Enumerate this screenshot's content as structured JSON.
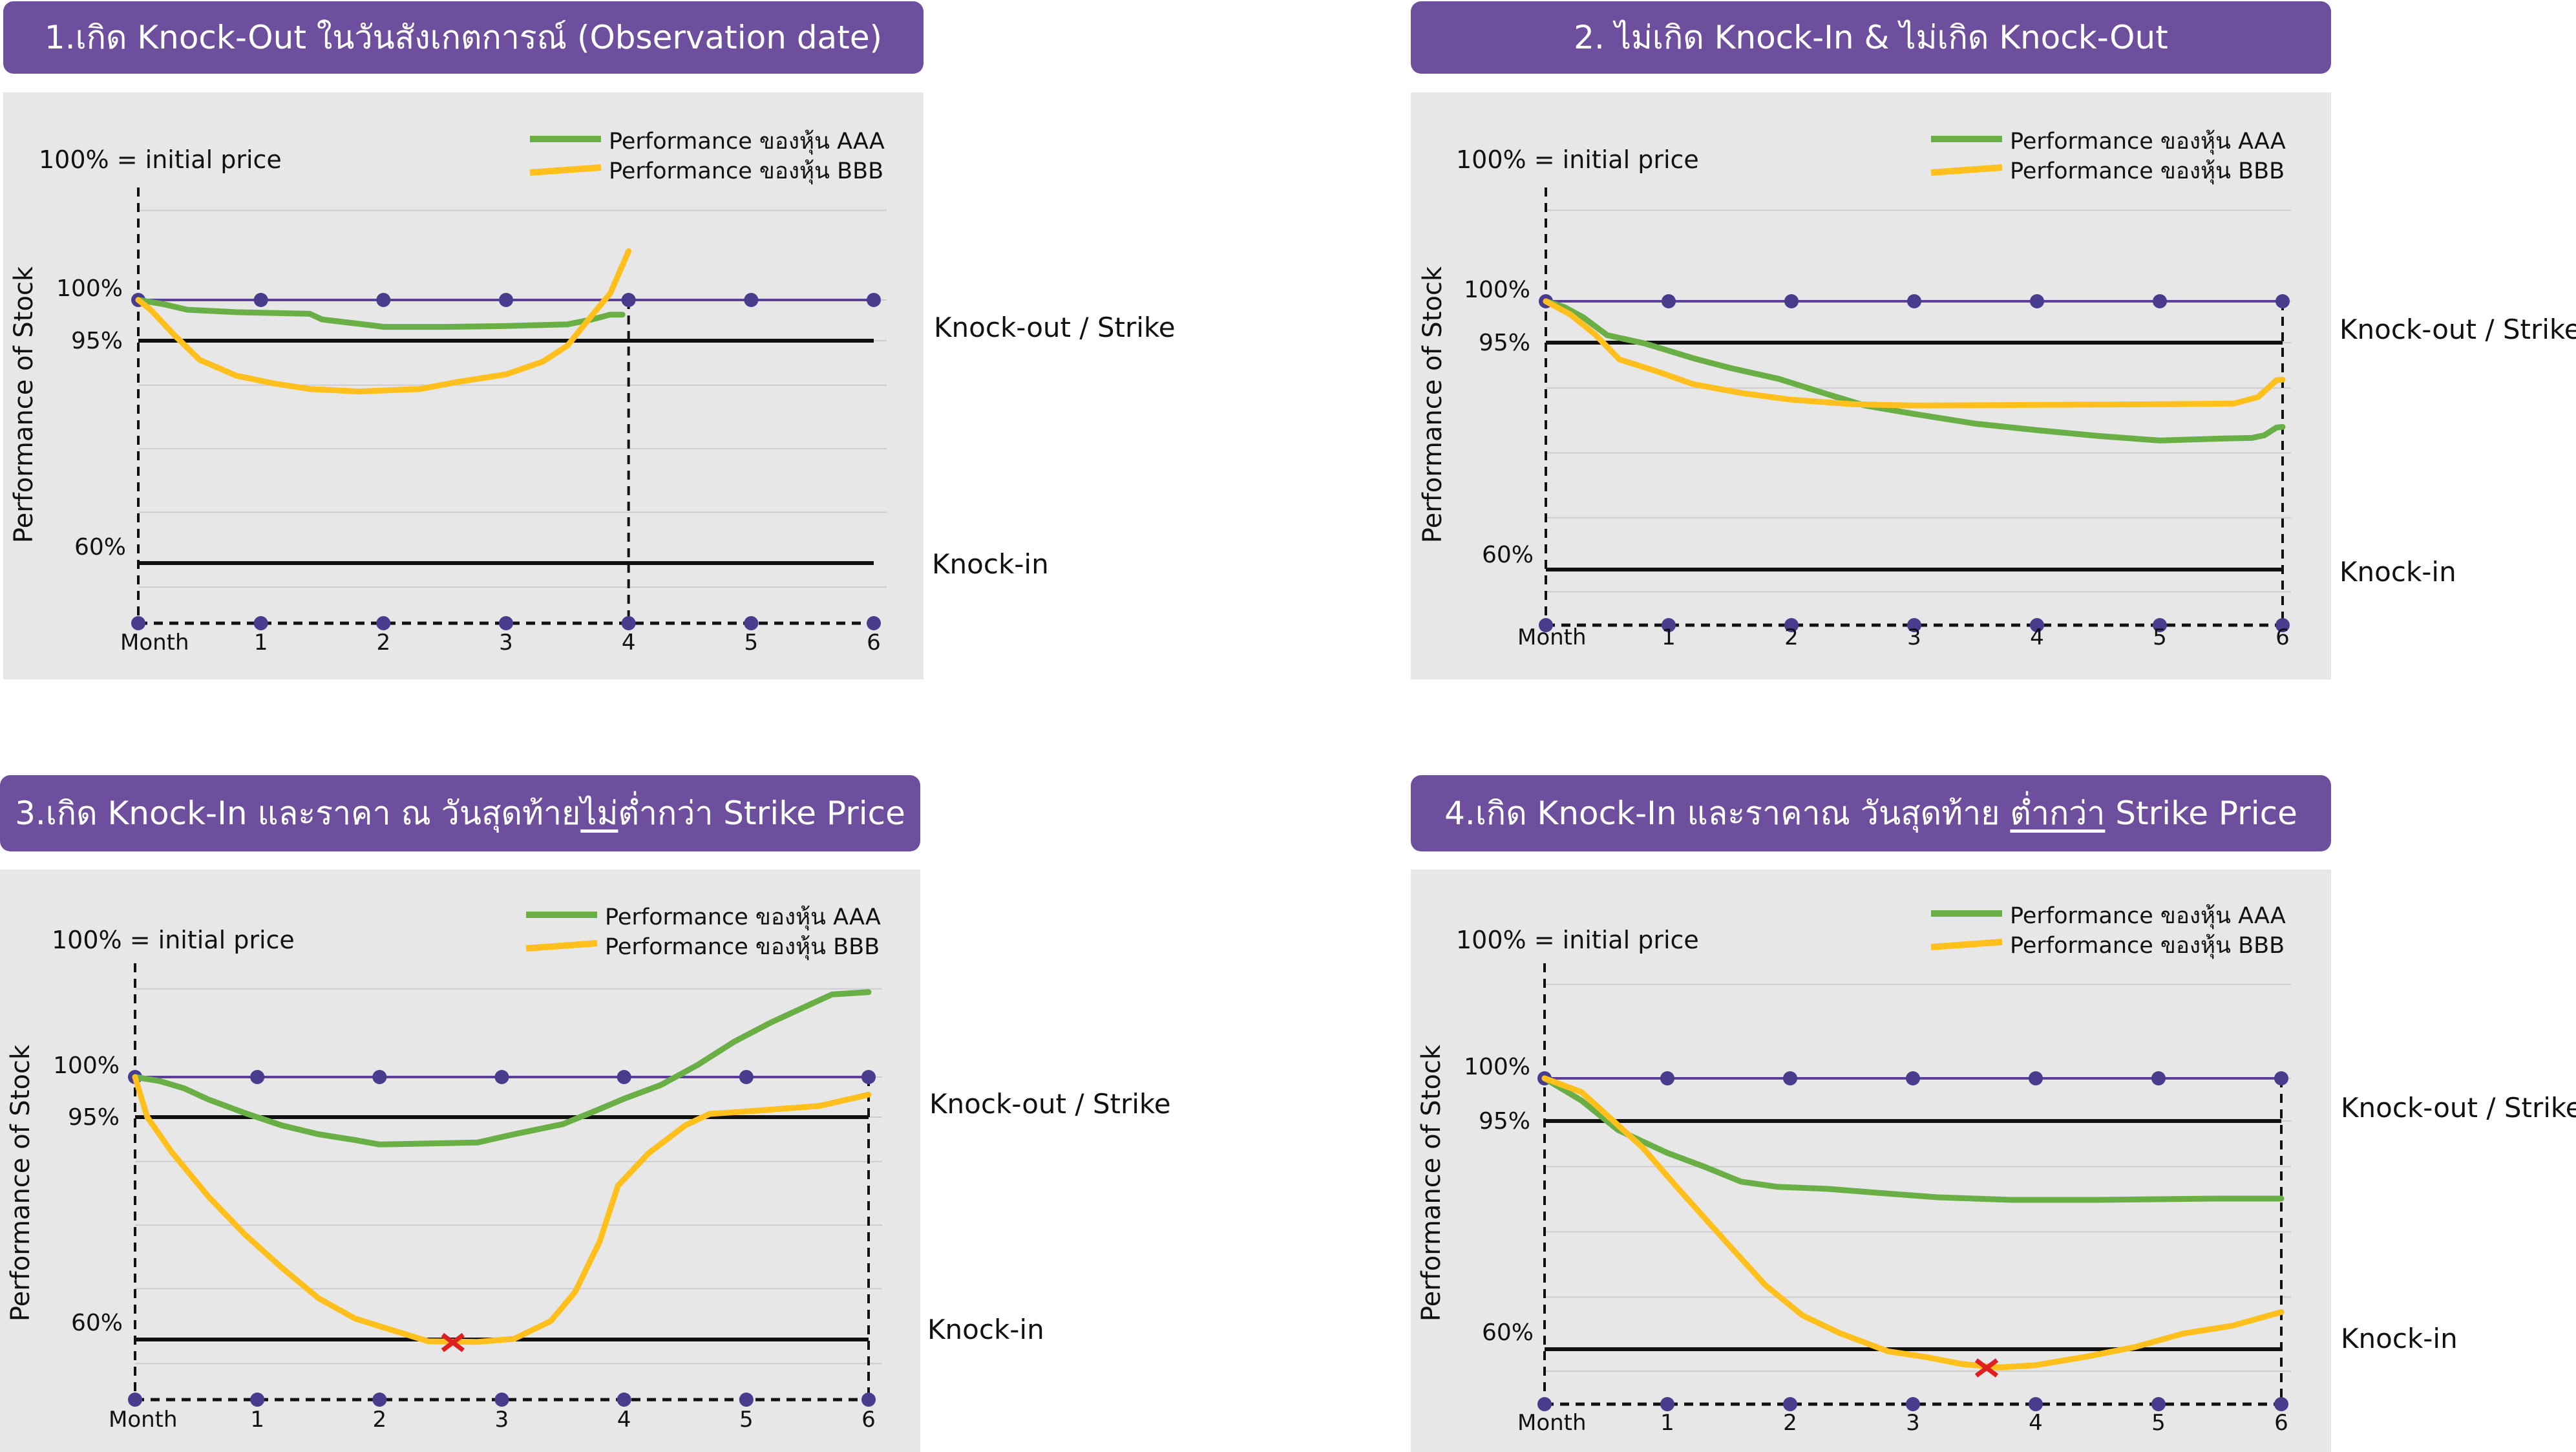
{
  "colors": {
    "banner_bg": "#6d4f9e",
    "plot_bg": "#e7e7e8",
    "aaa": "#6aaf45",
    "bbb": "#ffc01e",
    "strike_line": "#5b3f98",
    "observation_dot": "#4a3c8c",
    "knock_in_marker": "#e02020"
  },
  "chart_data": [
    {
      "type": "line",
      "title": "1.เกิด Knock-Out ในวันสังเกตการณ์ (Observation date)",
      "ylabel": "Performance of Stock",
      "note": "100% = initial price",
      "xlabel": "Month",
      "x_ticks": [
        "1",
        "2",
        "3",
        "4",
        "5",
        "6"
      ],
      "y_ticks": [
        {
          "label": "100%",
          "value": 100
        },
        {
          "label": "95%",
          "value": 95
        },
        {
          "label": "60%",
          "value": 60
        }
      ],
      "xlim": [
        0,
        6
      ],
      "ylim": [
        50,
        116
      ],
      "knock_out_label": "Knock-out / Strike",
      "knock_in_label": "Knock-in",
      "strike_level": 95,
      "knock_in_level": 60,
      "initial_level": 100,
      "end_month": 4,
      "series": [
        {
          "name": "Performance ของหุ้น AAA",
          "color": "aaa",
          "points": [
            [
              0,
              100
            ],
            [
              0.2,
              99.5
            ],
            [
              0.4,
              98.8
            ],
            [
              0.8,
              98.5
            ],
            [
              1.4,
              98.3
            ],
            [
              1.5,
              97.6
            ],
            [
              1.9,
              96.9
            ],
            [
              2.0,
              96.7
            ],
            [
              2.5,
              96.7
            ],
            [
              3.0,
              96.8
            ],
            [
              3.5,
              97.0
            ],
            [
              3.7,
              97.6
            ],
            [
              3.85,
              98.2
            ],
            [
              3.95,
              98.2
            ]
          ]
        },
        {
          "name": "Performance ของหุ้น BBB",
          "color": "bbb",
          "points": [
            [
              0,
              100
            ],
            [
              0.1,
              98.8
            ],
            [
              0.3,
              95.6
            ],
            [
              0.5,
              92.0
            ],
            [
              0.8,
              89.5
            ],
            [
              1.1,
              88.3
            ],
            [
              1.4,
              87.4
            ],
            [
              1.8,
              87.0
            ],
            [
              2.3,
              87.4
            ],
            [
              2.6,
              88.5
            ],
            [
              3.0,
              89.7
            ],
            [
              3.3,
              91.7
            ],
            [
              3.5,
              94.2
            ],
            [
              3.7,
              98.1
            ],
            [
              3.85,
              100.8
            ],
            [
              4.0,
              106.0
            ]
          ]
        }
      ],
      "ko_marker": null
    },
    {
      "type": "line",
      "title": "2. ไม่เกิด Knock-In & ไม่เกิด Knock-Out",
      "ylabel": "Performance of Stock",
      "note": "100% = initial price",
      "xlabel": "Month",
      "x_ticks": [
        "1",
        "2",
        "3",
        "4",
        "5",
        "6"
      ],
      "y_ticks": [
        {
          "label": "100%",
          "value": 100
        },
        {
          "label": "95%",
          "value": 95
        },
        {
          "label": "60%",
          "value": 60
        }
      ],
      "xlim": [
        0,
        6
      ],
      "ylim": [
        50,
        116
      ],
      "knock_out_label": "Knock-out / Strike",
      "knock_in_label": "Knock-in",
      "strike_level": 95,
      "knock_in_level": 60,
      "initial_level": 100,
      "end_month": 6,
      "series": [
        {
          "name": "Performance ของหุ้น AAA",
          "color": "aaa",
          "points": [
            [
              0,
              100
            ],
            [
              0.15,
              99.3
            ],
            [
              0.3,
              98.1
            ],
            [
              0.5,
              95.9
            ],
            [
              0.8,
              94.9
            ],
            [
              1.2,
              92.6
            ],
            [
              1.5,
              91.1
            ],
            [
              1.9,
              89.4
            ],
            [
              2.3,
              87.0
            ],
            [
              2.6,
              85.3
            ],
            [
              3.0,
              84.0
            ],
            [
              3.5,
              82.5
            ],
            [
              4.0,
              81.5
            ],
            [
              4.5,
              80.6
            ],
            [
              5.0,
              79.9
            ],
            [
              5.5,
              80.2
            ],
            [
              5.75,
              80.3
            ],
            [
              5.85,
              80.7
            ],
            [
              5.95,
              81.9
            ],
            [
              6.0,
              82.0
            ]
          ]
        },
        {
          "name": "Performance ของหุ้น BBB",
          "color": "bbb",
          "points": [
            [
              0,
              100
            ],
            [
              0.2,
              98.4
            ],
            [
              0.4,
              96.0
            ],
            [
              0.6,
              92.4
            ],
            [
              0.9,
              90.6
            ],
            [
              1.2,
              88.6
            ],
            [
              1.6,
              87.2
            ],
            [
              2.0,
              86.2
            ],
            [
              2.5,
              85.5
            ],
            [
              3.0,
              85.3
            ],
            [
              4.0,
              85.4
            ],
            [
              5.0,
              85.5
            ],
            [
              5.6,
              85.6
            ],
            [
              5.8,
              86.6
            ],
            [
              5.95,
              89.2
            ],
            [
              6.0,
              89.3
            ]
          ]
        }
      ],
      "ko_marker": null
    },
    {
      "type": "line",
      "title": "3.เกิด Knock-In และราคา ณ วันสุดท้าย",
      "title_underlined": "ไม่",
      "title_after": "ต่ำกว่า Strike Price",
      "ylabel": "Performance of Stock",
      "note": "100% = initial price",
      "xlabel": "Month",
      "x_ticks": [
        "1",
        "2",
        "3",
        "4",
        "5",
        "6"
      ],
      "y_ticks": [
        {
          "label": "100%",
          "value": 100
        },
        {
          "label": "95%",
          "value": 95
        },
        {
          "label": "60%",
          "value": 60
        }
      ],
      "xlim": [
        0,
        6
      ],
      "ylim": [
        50,
        116
      ],
      "knock_out_label": "Knock-out / Strike",
      "knock_in_label": "Knock-in",
      "strike_level": 95,
      "knock_in_level": 60,
      "initial_level": 100,
      "end_month": 6,
      "series": [
        {
          "name": "Performance ของหุ้น AAA",
          "color": "aaa",
          "points": [
            [
              0,
              100
            ],
            [
              0.2,
              99.5
            ],
            [
              0.4,
              98.6
            ],
            [
              0.6,
              97.2
            ],
            [
              0.9,
              95.5
            ],
            [
              1.2,
              93.7
            ],
            [
              1.5,
              92.3
            ],
            [
              1.8,
              91.4
            ],
            [
              2.0,
              90.7
            ],
            [
              2.8,
              91.0
            ],
            [
              3.1,
              92.3
            ],
            [
              3.5,
              93.9
            ],
            [
              3.8,
              96.0
            ],
            [
              4.0,
              97.3
            ],
            [
              4.3,
              99.0
            ],
            [
              4.6,
              101.5
            ],
            [
              4.9,
              104.4
            ],
            [
              5.2,
              106.8
            ],
            [
              5.5,
              108.9
            ],
            [
              5.7,
              110.3
            ],
            [
              6.0,
              110.6
            ]
          ]
        },
        {
          "name": "Performance ของหุ้น BBB",
          "color": "bbb",
          "points": [
            [
              0,
              100
            ],
            [
              0.1,
              95.0
            ],
            [
              0.3,
              89.5
            ],
            [
              0.6,
              82.5
            ],
            [
              0.9,
              76.5
            ],
            [
              1.2,
              71.3
            ],
            [
              1.5,
              66.5
            ],
            [
              1.8,
              63.3
            ],
            [
              2.1,
              61.5
            ],
            [
              2.4,
              59.7
            ],
            [
              2.8,
              59.6
            ],
            [
              3.1,
              60.1
            ],
            [
              3.4,
              62.9
            ],
            [
              3.6,
              67.5
            ],
            [
              3.8,
              75.4
            ],
            [
              3.95,
              84.2
            ],
            [
              4.2,
              89.3
            ],
            [
              4.5,
              93.7
            ],
            [
              4.7,
              95.4
            ],
            [
              5.0,
              95.7
            ],
            [
              5.6,
              96.4
            ],
            [
              6.0,
              97.8
            ]
          ]
        }
      ],
      "ko_marker": {
        "x": 2.6,
        "y": 59.5
      }
    },
    {
      "type": "line",
      "title": "4.เกิด Knock-In และราคาณ วันสุดท้าย",
      "title_underlined": "ต่ำกว่า",
      "title_after": "Strike Price",
      "ylabel": "Performance of Stock",
      "note": "100% = initial price",
      "xlabel": "Month",
      "x_ticks": [
        "1",
        "2",
        "3",
        "4",
        "5",
        "6"
      ],
      "y_ticks": [
        {
          "label": "100%",
          "value": 100
        },
        {
          "label": "95%",
          "value": 95
        },
        {
          "label": "60%",
          "value": 60
        }
      ],
      "xlim": [
        0,
        6
      ],
      "ylim": [
        50,
        116
      ],
      "knock_out_label": "Knock-out / Strike",
      "knock_in_label": "Knock-in",
      "strike_level": 95,
      "knock_in_level": 60,
      "initial_level": 100,
      "end_month": 6,
      "series": [
        {
          "name": "Performance ของหุ้น AAA",
          "color": "aaa",
          "points": [
            [
              0,
              100
            ],
            [
              0.3,
              97.4
            ],
            [
              0.6,
              93.6
            ],
            [
              1.0,
              90.1
            ],
            [
              1.3,
              88.0
            ],
            [
              1.6,
              85.7
            ],
            [
              1.9,
              84.9
            ],
            [
              2.3,
              84.6
            ],
            [
              2.7,
              84.0
            ],
            [
              3.2,
              83.3
            ],
            [
              3.8,
              82.9
            ],
            [
              4.5,
              82.9
            ],
            [
              5.5,
              83.1
            ],
            [
              6.0,
              83.1
            ]
          ]
        },
        {
          "name": "Performance ของหุ้น BBB",
          "color": "bbb",
          "points": [
            [
              0,
              100
            ],
            [
              0.3,
              98.4
            ],
            [
              0.5,
              95.8
            ],
            [
              0.8,
              90.9
            ],
            [
              1.1,
              84.4
            ],
            [
              1.5,
              76.0
            ],
            [
              1.8,
              69.8
            ],
            [
              2.1,
              65.2
            ],
            [
              2.4,
              62.5
            ],
            [
              2.8,
              59.6
            ],
            [
              3.1,
              58.6
            ],
            [
              3.4,
              57.3
            ],
            [
              3.7,
              56.7
            ],
            [
              4.0,
              57.1
            ],
            [
              4.4,
              58.6
            ],
            [
              4.8,
              60.3
            ],
            [
              5.2,
              62.4
            ],
            [
              5.6,
              63.6
            ],
            [
              6.0,
              65.7
            ]
          ]
        }
      ],
      "ko_marker": {
        "x": 3.6,
        "y": 56.6
      }
    }
  ]
}
